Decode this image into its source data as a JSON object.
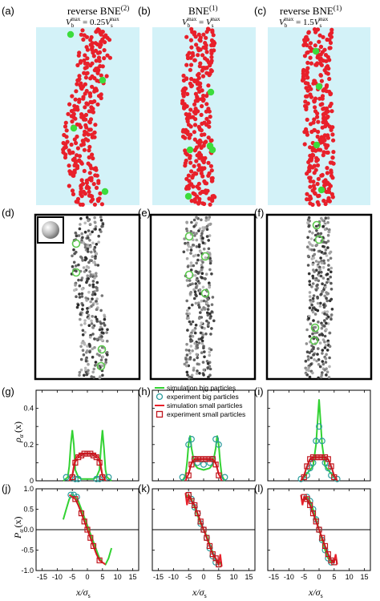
{
  "panels": {
    "a": {
      "letter": "(a)",
      "title": "reverse BNE",
      "sup": "(2)",
      "eq": "V_b^max = 0.25V_s^max"
    },
    "b": {
      "letter": "(b)",
      "title": "BNE",
      "sup": "(1)",
      "eq": "V_b^max = V_s^max"
    },
    "c": {
      "letter": "(c)",
      "title": "reverse BNE",
      "sup": "(1)",
      "eq": "V_b^max = 1.5V_s^max"
    },
    "d": {
      "letter": "(d)"
    },
    "e": {
      "letter": "(e)"
    },
    "f": {
      "letter": "(f)"
    },
    "g": {
      "letter": "(g)"
    },
    "h": {
      "letter": "(h)"
    },
    "i": {
      "letter": "(i)"
    },
    "j": {
      "letter": "(j)"
    },
    "k": {
      "letter": "(k)"
    },
    "l": {
      "letter": "(l)"
    }
  },
  "labels": {
    "eq_sub_b": "b",
    "eq_sub_s": "s",
    "eq_sup_max": "max",
    "density_ylabel": "ρ",
    "density_ylabel_sub": "α",
    "density_ylabel_arg": "(x)",
    "pol_ylabel": "P",
    "pol_ylabel_sub": "α",
    "pol_ylabel_arg": "(x)",
    "xlabel": "x/σ",
    "xlabel_sub": "s"
  },
  "legend": [
    {
      "label": "simulation big particles",
      "style": "line",
      "color": "#32d232"
    },
    {
      "label": "experiment big particles",
      "style": "circle",
      "color": "#2a9c9c"
    },
    {
      "label": "simulation small particles",
      "style": "line",
      "color": "#e8202a"
    },
    {
      "label": "experiment small particles",
      "style": "square",
      "color": "#c0141c"
    }
  ],
  "colors": {
    "liquid_bg": "#d3f2f8",
    "small_particle": "#e8202a",
    "big_particle": "#3cdc3c",
    "sim_big": "#32d232",
    "exp_big": "#2a9c9c",
    "sim_small": "#e8202a",
    "exp_small": "#c0141c"
  },
  "chart_data": [
    {
      "panel": "g",
      "type": "line",
      "xlim": [
        -17,
        17
      ],
      "ylim": [
        0,
        0.5
      ],
      "yticks": [
        0,
        0.2,
        0.4
      ],
      "series": [
        {
          "name": "simulation big particles",
          "x": [
            -8,
            -6.5,
            -6,
            -5.5,
            -5,
            -4.5,
            -4,
            -3,
            -2,
            0,
            2,
            3,
            4,
            4.5,
            5,
            5.5,
            6,
            6.5,
            8
          ],
          "y": [
            0,
            0.02,
            0.08,
            0.2,
            0.28,
            0.2,
            0.06,
            0.02,
            0.01,
            0.01,
            0.01,
            0.02,
            0.06,
            0.18,
            0.28,
            0.18,
            0.06,
            0.02,
            0
          ]
        },
        {
          "name": "experiment big particles",
          "x": [
            -7,
            -5,
            -4,
            -3,
            3,
            4,
            5,
            7
          ],
          "y": [
            0.02,
            0.02,
            0.01,
            0.01,
            0.01,
            0.01,
            0.02,
            0.02
          ]
        },
        {
          "name": "simulation small particles",
          "x": [
            -6,
            -5,
            -4.5,
            -4,
            -3,
            -2,
            0,
            2,
            3,
            4,
            4.5,
            5,
            6
          ],
          "y": [
            0,
            0.03,
            0.08,
            0.12,
            0.14,
            0.15,
            0.15,
            0.15,
            0.14,
            0.12,
            0.08,
            0.03,
            0
          ]
        },
        {
          "name": "experiment small particles",
          "x": [
            -5,
            -4,
            -3,
            -2,
            -1,
            0,
            1,
            2,
            3,
            4,
            5
          ],
          "y": [
            0.02,
            0.1,
            0.13,
            0.14,
            0.15,
            0.15,
            0.15,
            0.14,
            0.13,
            0.1,
            0.02
          ]
        }
      ]
    },
    {
      "panel": "h",
      "type": "line",
      "xlim": [
        -17,
        17
      ],
      "ylim": [
        0,
        0.5
      ],
      "series": [
        {
          "name": "simulation big particles",
          "x": [
            -7,
            -6,
            -5.5,
            -5,
            -4.5,
            -4,
            -3,
            -2,
            0,
            2,
            3,
            4,
            4.5,
            5,
            5.5,
            6,
            7
          ],
          "y": [
            0,
            0.03,
            0.1,
            0.2,
            0.25,
            0.18,
            0.09,
            0.07,
            0.06,
            0.07,
            0.09,
            0.18,
            0.25,
            0.2,
            0.1,
            0.03,
            0
          ]
        },
        {
          "name": "experiment big particles",
          "x": [
            -7,
            -5,
            -4,
            -3,
            -2,
            0,
            2,
            3,
            4,
            5,
            7
          ],
          "y": [
            0.02,
            0.2,
            0.23,
            0.12,
            0.1,
            0.09,
            0.1,
            0.12,
            0.23,
            0.2,
            0.02
          ]
        },
        {
          "name": "simulation small particles",
          "x": [
            -6,
            -5,
            -4,
            -3,
            -2,
            0,
            2,
            3,
            4,
            5,
            6
          ],
          "y": [
            0,
            0.04,
            0.1,
            0.12,
            0.12,
            0.12,
            0.12,
            0.12,
            0.1,
            0.04,
            0
          ]
        },
        {
          "name": "experiment small particles",
          "x": [
            -5,
            -4,
            -3,
            -2,
            -1,
            0,
            1,
            2,
            3,
            4,
            5
          ],
          "y": [
            0.03,
            0.09,
            0.12,
            0.12,
            0.12,
            0.12,
            0.12,
            0.12,
            0.12,
            0.09,
            0.03
          ]
        }
      ]
    },
    {
      "panel": "i",
      "type": "line",
      "xlim": [
        -17,
        17
      ],
      "ylim": [
        0,
        0.5
      ],
      "series": [
        {
          "name": "simulation big particles",
          "x": [
            -6,
            -5,
            -4,
            -3,
            -2,
            -1,
            0,
            1,
            2,
            3,
            4,
            5,
            6
          ],
          "y": [
            0,
            0.02,
            0.04,
            0.06,
            0.08,
            0.2,
            0.45,
            0.2,
            0.08,
            0.06,
            0.04,
            0.02,
            0
          ]
        },
        {
          "name": "experiment big particles",
          "x": [
            -6,
            -4,
            -3,
            -2,
            -1,
            0,
            1,
            2,
            3,
            4,
            6
          ],
          "y": [
            0.01,
            0.03,
            0.07,
            0.1,
            0.22,
            0.3,
            0.22,
            0.1,
            0.07,
            0.03,
            0.01
          ]
        },
        {
          "name": "simulation small particles",
          "x": [
            -6,
            -5,
            -4,
            -3,
            -2,
            0,
            2,
            3,
            4,
            5,
            6
          ],
          "y": [
            0,
            0.03,
            0.08,
            0.12,
            0.13,
            0.13,
            0.13,
            0.12,
            0.08,
            0.03,
            0
          ]
        },
        {
          "name": "experiment small particles",
          "x": [
            -5,
            -4,
            -3,
            -2,
            -1,
            0,
            1,
            2,
            3,
            4,
            5
          ],
          "y": [
            0.02,
            0.08,
            0.12,
            0.13,
            0.13,
            0.13,
            0.13,
            0.13,
            0.12,
            0.08,
            0.02
          ]
        }
      ]
    },
    {
      "panel": "j",
      "type": "line",
      "xlim": [
        -17,
        17
      ],
      "ylim": [
        -1,
        1
      ],
      "xticks": [
        -15,
        -10,
        -5,
        0,
        5,
        10,
        15
      ],
      "yticks": [
        -1,
        -0.5,
        0,
        0.5,
        1
      ],
      "series": [
        {
          "name": "simulation big particles",
          "x": [
            -8,
            -7,
            -6,
            -5,
            -4,
            -3,
            4,
            5,
            6,
            7,
            8
          ],
          "y": [
            0.25,
            0.5,
            0.75,
            0.85,
            0.8,
            0.7,
            -0.7,
            -0.8,
            -0.85,
            -0.7,
            -0.45
          ]
        },
        {
          "name": "experiment big particles",
          "x": [
            -5.5,
            -4.5,
            -3.5
          ],
          "y": [
            0.85,
            0.85,
            0.8
          ]
        },
        {
          "name": "simulation small particles",
          "x": [
            -6,
            -5,
            -4,
            -3,
            -2,
            -1,
            0,
            1,
            2,
            3,
            4,
            5,
            6
          ],
          "y": [
            0.85,
            0.8,
            0.75,
            0.6,
            0.4,
            0.2,
            0,
            -0.2,
            -0.4,
            -0.6,
            -0.75,
            -0.8,
            -0.85
          ]
        },
        {
          "name": "experiment small particles",
          "x": [
            -4,
            -2,
            -1,
            0,
            1,
            2,
            4
          ],
          "y": [
            0.75,
            0.4,
            0.2,
            0,
            -0.2,
            -0.4,
            -0.75
          ]
        }
      ]
    },
    {
      "panel": "k",
      "type": "line",
      "xlim": [
        -17,
        17
      ],
      "ylim": [
        -1,
        1
      ],
      "series": [
        {
          "name": "simulation big particles",
          "x": [
            -6,
            -5,
            -4,
            -3,
            -2,
            -1,
            0,
            1,
            2,
            3,
            4,
            5,
            6
          ],
          "y": [
            0.8,
            0.85,
            0.75,
            0.55,
            0.35,
            0.15,
            0,
            -0.15,
            -0.35,
            -0.55,
            -0.75,
            -0.85,
            -0.8
          ]
        },
        {
          "name": "experiment big particles",
          "x": [
            -5,
            -4,
            -3,
            -2,
            -1,
            0,
            1,
            2,
            3,
            4,
            5
          ],
          "y": [
            0.85,
            0.75,
            0.55,
            0.4,
            0.15,
            0,
            -0.2,
            -0.45,
            -0.65,
            -0.8,
            -0.85
          ]
        },
        {
          "name": "simulation small particles",
          "x": [
            -6,
            -5.5,
            -5,
            -4,
            -3,
            -2,
            -1,
            0,
            1,
            2,
            3,
            4,
            5,
            5.5,
            6
          ],
          "y": [
            0.9,
            0.6,
            0.85,
            0.7,
            0.6,
            0.4,
            0.2,
            0,
            -0.2,
            -0.4,
            -0.6,
            -0.7,
            -0.85,
            -0.6,
            -0.9
          ]
        },
        {
          "name": "experiment small particles",
          "x": [
            -5,
            -4,
            -3,
            -2,
            -1,
            0,
            1,
            2,
            3,
            4,
            5
          ],
          "y": [
            0.85,
            0.7,
            0.6,
            0.4,
            0.2,
            0,
            -0.2,
            -0.4,
            -0.6,
            -0.7,
            -0.85
          ]
        }
      ]
    },
    {
      "panel": "l",
      "type": "line",
      "xlim": [
        -17,
        17
      ],
      "ylim": [
        -1,
        1
      ],
      "series": [
        {
          "name": "simulation big particles",
          "x": [
            -4,
            -3,
            -2,
            -1,
            0,
            1,
            2,
            3,
            4
          ],
          "y": [
            0.8,
            0.7,
            0.5,
            0.25,
            0,
            -0.25,
            -0.5,
            -0.7,
            -0.8
          ]
        },
        {
          "name": "experiment big particles",
          "x": [
            -4,
            -3,
            -2,
            -1,
            0,
            1,
            2,
            3,
            4
          ],
          "y": [
            0.8,
            0.7,
            0.5,
            0.25,
            0,
            -0.25,
            -0.5,
            -0.7,
            -0.8
          ]
        },
        {
          "name": "simulation small particles",
          "x": [
            -6,
            -5.5,
            -5,
            -4,
            -3,
            -2,
            -1,
            0,
            1,
            2,
            3,
            4,
            5,
            5.5,
            6
          ],
          "y": [
            0.85,
            0.6,
            0.8,
            0.75,
            0.6,
            0.4,
            0.2,
            0,
            -0.2,
            -0.4,
            -0.6,
            -0.75,
            -0.8,
            -0.6,
            -0.85
          ]
        },
        {
          "name": "experiment small particles",
          "x": [
            -5,
            -4,
            -3,
            -2,
            -1,
            0,
            1,
            2,
            3,
            4,
            5
          ],
          "y": [
            0.8,
            0.75,
            0.6,
            0.4,
            0.2,
            0,
            -0.2,
            -0.4,
            -0.6,
            -0.75,
            -0.8
          ]
        }
      ]
    }
  ]
}
